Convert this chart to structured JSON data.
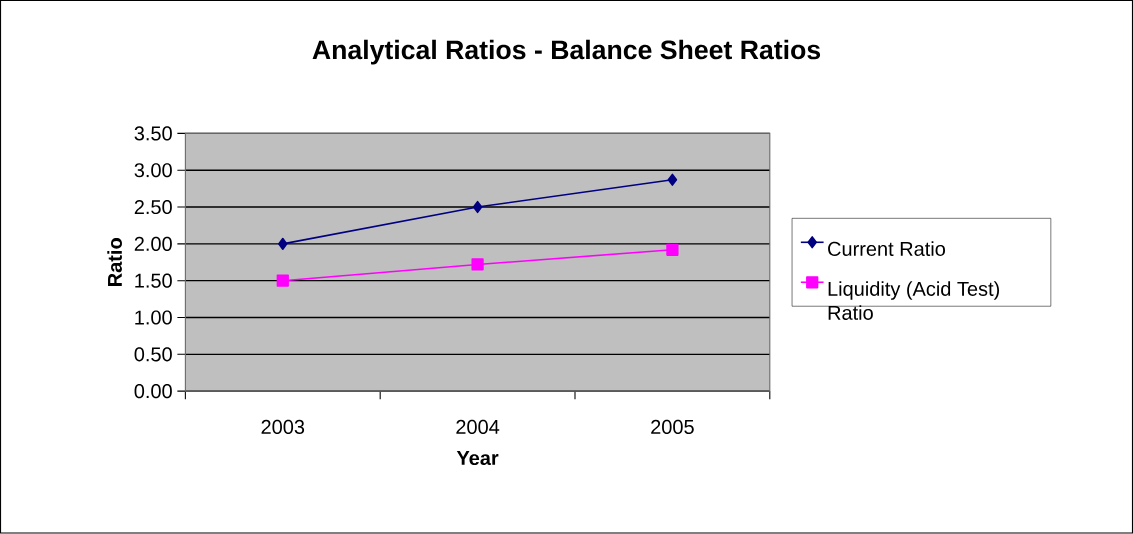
{
  "chart_data": {
    "type": "line",
    "title": "Analytical Ratios - Balance Sheet Ratios",
    "xlabel": "Year",
    "ylabel": "Ratio",
    "categories": [
      "2003",
      "2004",
      "2005"
    ],
    "series": [
      {
        "name": "Current Ratio",
        "color": "#000080",
        "marker": "diamond",
        "values": [
          2.0,
          2.5,
          2.87
        ]
      },
      {
        "name": "Liquidity (Acid Test) Ratio",
        "color": "#ff00ff",
        "marker": "square",
        "values": [
          1.5,
          1.72,
          1.92
        ]
      }
    ],
    "ylim": [
      0,
      3.5
    ],
    "yticks": [
      {
        "value": 0,
        "label": "0.00"
      },
      {
        "value": 0.5,
        "label": "0.50"
      },
      {
        "value": 1,
        "label": "1.00"
      },
      {
        "value": 1.5,
        "label": "1.50"
      },
      {
        "value": 2,
        "label": "2.00"
      },
      {
        "value": 2.5,
        "label": "2.50"
      },
      {
        "value": 3,
        "label": "3.00"
      },
      {
        "value": 3.5,
        "label": "3.50"
      }
    ],
    "grid": "y",
    "legend": "right",
    "line_style": "solid"
  }
}
